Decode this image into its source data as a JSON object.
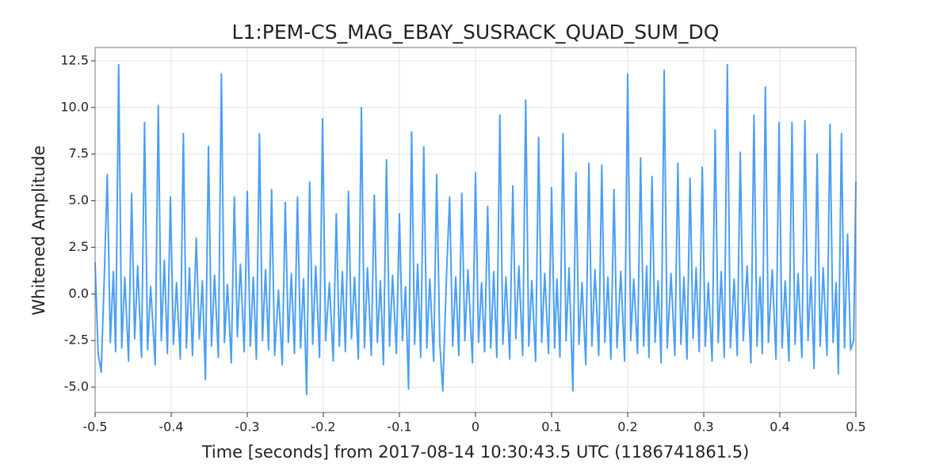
{
  "chart_data": {
    "type": "line",
    "title": "L1:PEM-CS_MAG_EBAY_SUSRACK_QUAD_SUM_DQ",
    "x_label": "Time [seconds] from 2017-08-14 10:30:43.5 UTC (1186741861.5)",
    "y_label": "Whitened Amplitude",
    "color": "#4a9ff5",
    "grid": true,
    "xlim": [
      -0.5,
      0.5
    ],
    "ylim": [
      -6.36,
      13.22
    ],
    "xticks": [
      -0.5,
      -0.4,
      -0.3,
      -0.2,
      -0.1,
      0,
      0.1,
      0.2,
      0.3,
      0.4,
      0.5
    ],
    "yticks": [
      {
        "value": -5,
        "label": "-5.0"
      },
      -2.5,
      {
        "value": 0,
        "label": "0.0"
      },
      2.5,
      {
        "value": 5,
        "label": "5.0"
      },
      7.5,
      {
        "value": 10,
        "label": "10.0"
      },
      12.5
    ],
    "x": [
      -0.5,
      -0.496,
      -0.492,
      -0.488,
      -0.484,
      -0.48,
      -0.476,
      -0.473,
      -0.469,
      -0.465,
      -0.461,
      -0.456,
      -0.452,
      -0.448,
      -0.444,
      -0.439,
      -0.435,
      -0.431,
      -0.427,
      -0.421,
      -0.417,
      -0.413,
      -0.409,
      -0.405,
      -0.401,
      -0.397,
      -0.393,
      -0.388,
      -0.384,
      -0.38,
      -0.376,
      -0.372,
      -0.367,
      -0.363,
      -0.359,
      -0.355,
      -0.351,
      -0.347,
      -0.343,
      -0.338,
      -0.334,
      -0.33,
      -0.326,
      -0.321,
      -0.317,
      -0.313,
      -0.309,
      -0.304,
      -0.3,
      -0.296,
      -0.292,
      -0.288,
      -0.284,
      -0.28,
      -0.276,
      -0.272,
      -0.268,
      -0.264,
      -0.259,
      -0.254,
      -0.25,
      -0.246,
      -0.242,
      -0.238,
      -0.234,
      -0.23,
      -0.226,
      -0.222,
      -0.218,
      -0.214,
      -0.21,
      -0.205,
      -0.201,
      -0.197,
      -0.192,
      -0.187,
      -0.183,
      -0.179,
      -0.175,
      -0.171,
      -0.167,
      -0.163,
      -0.159,
      -0.154,
      -0.15,
      -0.146,
      -0.142,
      -0.137,
      -0.133,
      -0.129,
      -0.125,
      -0.121,
      -0.117,
      -0.113,
      -0.109,
      -0.104,
      -0.1,
      -0.096,
      -0.092,
      -0.088,
      -0.084,
      -0.08,
      -0.076,
      -0.072,
      -0.068,
      -0.064,
      -0.06,
      -0.055,
      -0.051,
      -0.047,
      -0.043,
      -0.038,
      -0.034,
      -0.03,
      -0.026,
      -0.022,
      -0.018,
      -0.014,
      -0.01,
      -0.004,
      0.0,
      0.004,
      0.008,
      0.012,
      0.016,
      0.02,
      0.024,
      0.028,
      0.032,
      0.036,
      0.04,
      0.045,
      0.049,
      0.053,
      0.057,
      0.062,
      0.066,
      0.07,
      0.074,
      0.079,
      0.083,
      0.087,
      0.091,
      0.096,
      0.1,
      0.104,
      0.107,
      0.111,
      0.115,
      0.119,
      0.123,
      0.128,
      0.132,
      0.136,
      0.14,
      0.145,
      0.149,
      0.153,
      0.157,
      0.162,
      0.166,
      0.17,
      0.174,
      0.178,
      0.182,
      0.186,
      0.191,
      0.196,
      0.2,
      0.204,
      0.208,
      0.213,
      0.217,
      0.221,
      0.225,
      0.228,
      0.232,
      0.236,
      0.24,
      0.244,
      0.248,
      0.252,
      0.257,
      0.262,
      0.266,
      0.27,
      0.274,
      0.278,
      0.282,
      0.286,
      0.29,
      0.294,
      0.298,
      0.302,
      0.306,
      0.311,
      0.315,
      0.319,
      0.323,
      0.327,
      0.331,
      0.335,
      0.34,
      0.344,
      0.348,
      0.352,
      0.357,
      0.362,
      0.366,
      0.37,
      0.374,
      0.377,
      0.381,
      0.385,
      0.39,
      0.395,
      0.399,
      0.403,
      0.407,
      0.412,
      0.416,
      0.42,
      0.424,
      0.429,
      0.433,
      0.437,
      0.441,
      0.445,
      0.449,
      0.453,
      0.457,
      0.462,
      0.466,
      0.47,
      0.474,
      0.477,
      0.481,
      0.485,
      0.489,
      0.493,
      0.497,
      0.5
    ],
    "values": [
      1.7,
      -3.2,
      -4.2,
      0.8,
      6.4,
      -2.6,
      1.2,
      -3.1,
      12.3,
      -2.9,
      0.9,
      -3.6,
      5.4,
      -2.4,
      1.5,
      -3.4,
      9.2,
      -3.0,
      0.4,
      -3.8,
      10.1,
      -2.5,
      1.8,
      -3.2,
      5.2,
      -2.7,
      0.6,
      -3.5,
      8.6,
      -2.9,
      1.4,
      -3.3,
      3.0,
      -2.4,
      0.7,
      -4.6,
      7.9,
      -2.8,
      1.0,
      -3.4,
      11.8,
      -2.6,
      0.5,
      -3.7,
      5.2,
      -2.3,
      1.6,
      -3.1,
      5.5,
      -2.8,
      0.9,
      -3.5,
      8.6,
      -2.5,
      1.3,
      -3.0,
      5.6,
      -3.3,
      0.2,
      -3.8,
      4.9,
      -2.6,
      1.1,
      -3.2,
      5.2,
      -2.9,
      0.8,
      -5.4,
      6.0,
      -2.7,
      1.5,
      -3.4,
      9.4,
      -2.5,
      0.6,
      -3.6,
      4.3,
      -2.8,
      1.2,
      -3.1,
      5.5,
      -2.4,
      0.9,
      -3.5,
      10.0,
      -2.9,
      1.4,
      -3.3,
      5.3,
      -2.6,
      0.7,
      -3.8,
      7.2,
      -2.8,
      1.0,
      -3.2,
      4.3,
      -2.5,
      0.4,
      -5.1,
      8.7,
      -2.7,
      1.6,
      -3.4,
      7.9,
      -2.9,
      0.8,
      -3.6,
      6.4,
      -2.6,
      -5.2,
      1.1,
      5.2,
      -2.8,
      0.9,
      -3.3,
      5.4,
      -2.5,
      1.3,
      -3.7,
      6.5,
      -2.6,
      0.6,
      -3.1,
      4.7,
      -2.9,
      1.2,
      -3.4,
      9.6,
      -2.7,
      0.9,
      -3.5,
      5.8,
      -2.4,
      1.5,
      -3.3,
      10.4,
      -2.8,
      0.7,
      -3.6,
      8.4,
      -2.6,
      1.1,
      -3.2,
      5.7,
      -2.9,
      0.8,
      -3.4,
      8.6,
      -2.5,
      1.4,
      -5.2,
      6.5,
      -2.7,
      0.6,
      -3.8,
      7.0,
      -2.8,
      1.3,
      -3.3,
      6.9,
      -2.6,
      0.9,
      -3.5,
      5.6,
      -2.9,
      1.2,
      -3.6,
      11.8,
      -2.5,
      0.8,
      -3.2,
      7.3,
      -2.8,
      1.5,
      -3.4,
      6.3,
      -2.6,
      0.7,
      -3.7,
      12.0,
      -2.9,
      1.1,
      -3.3,
      7.0,
      -2.7,
      0.9,
      -3.5,
      6.2,
      -2.4,
      1.4,
      -3.1,
      6.8,
      -2.8,
      0.6,
      -3.6,
      8.8,
      -2.6,
      1.2,
      -3.4,
      12.3,
      -2.9,
      0.8,
      -3.3,
      7.6,
      -2.5,
      1.5,
      -3.7,
      9.6,
      -2.8,
      0.9,
      -3.2,
      11.1,
      -2.6,
      1.3,
      -3.5,
      9.2,
      -2.9,
      0.7,
      -3.6,
      9.2,
      -2.7,
      1.1,
      -3.4,
      9.3,
      -2.5,
      0.9,
      -4.0,
      7.5,
      -2.8,
      1.4,
      -3.3,
      9.1,
      -2.6,
      0.6,
      -4.3,
      8.6,
      -2.9,
      3.2,
      -3.0,
      -2.5,
      6.0
    ]
  }
}
